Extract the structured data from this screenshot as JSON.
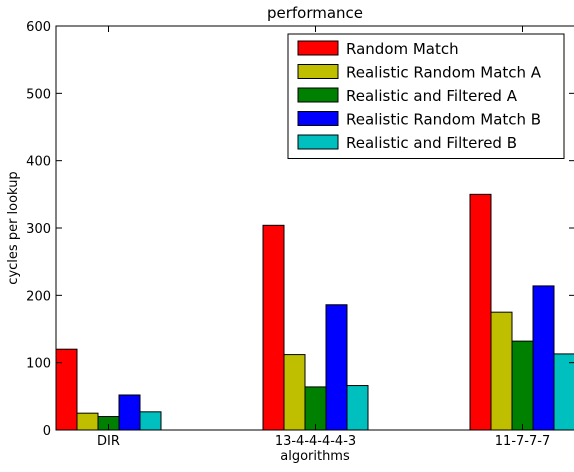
{
  "chart_data": {
    "type": "bar",
    "title": "performance",
    "xlabel": "algorithms",
    "ylabel": "cycles per lookup",
    "ylim": [
      0,
      600
    ],
    "yticks": [
      0,
      100,
      200,
      300,
      400,
      500,
      600
    ],
    "grid": false,
    "legend_position": "top-right",
    "categories": [
      "DIR",
      "13-4-4-4-4-3",
      "11-7-7-7"
    ],
    "series": [
      {
        "name": "Random Match",
        "color": "#ff0000",
        "values": [
          120,
          304,
          350
        ]
      },
      {
        "name": "Realistic Random Match A",
        "color": "#bfbf00",
        "values": [
          25,
          112,
          175
        ]
      },
      {
        "name": "Realistic and Filtered A",
        "color": "#008000",
        "values": [
          20,
          64,
          132
        ]
      },
      {
        "name": "Realistic Random Match B",
        "color": "#0000ff",
        "values": [
          52,
          186,
          214
        ]
      },
      {
        "name": "Realistic and Filtered B",
        "color": "#00bfbf",
        "values": [
          27,
          66,
          113
        ]
      }
    ]
  }
}
